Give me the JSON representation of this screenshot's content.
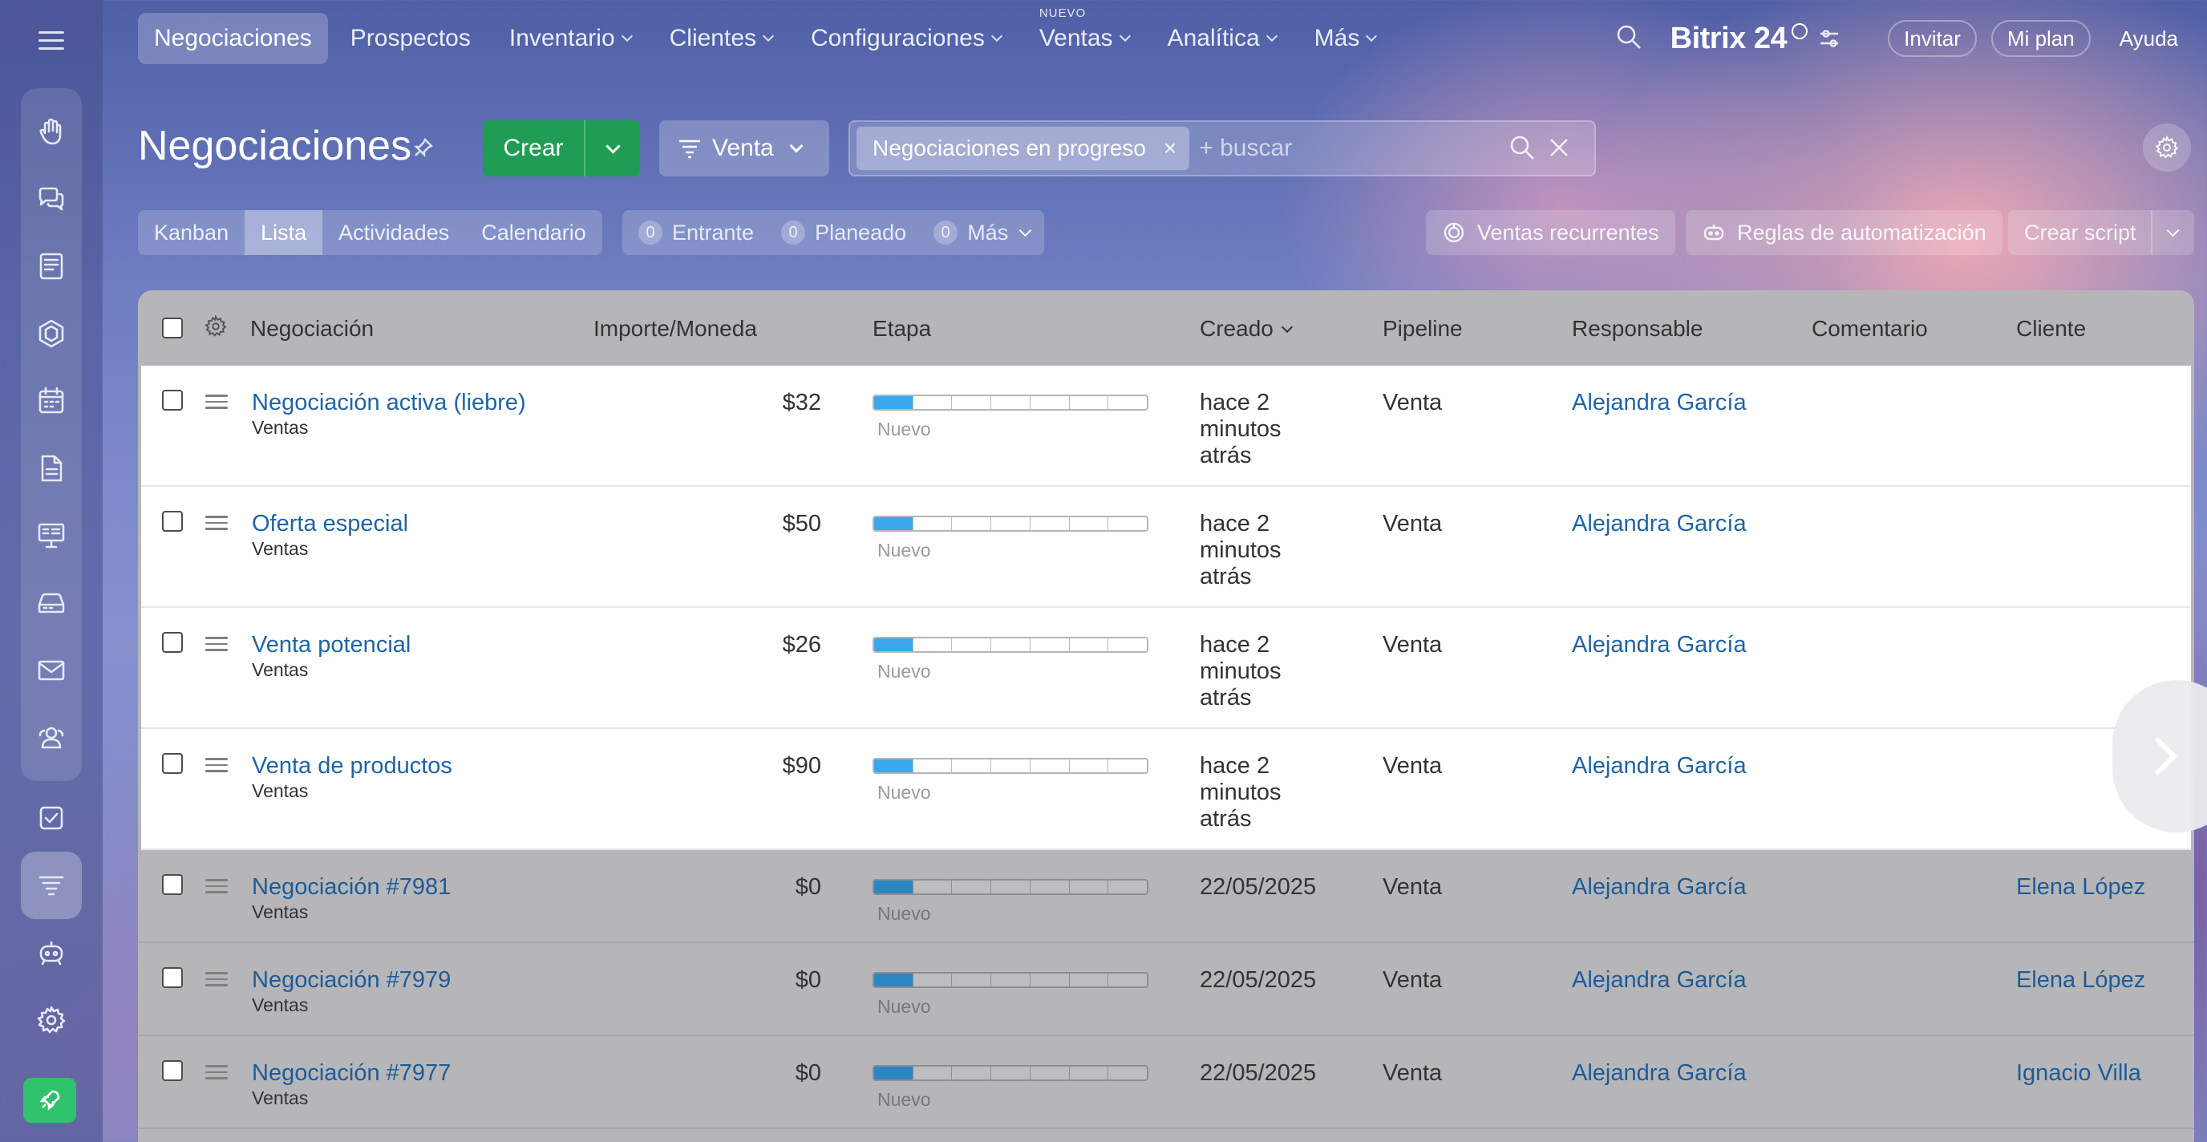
{
  "topnav": {
    "items": [
      {
        "label": "Negociaciones",
        "chevron": false,
        "active": true
      },
      {
        "label": "Prospectos",
        "chevron": false
      },
      {
        "label": "Inventario",
        "chevron": true
      },
      {
        "label": "Clientes",
        "chevron": true
      },
      {
        "label": "Configuraciones",
        "chevron": true
      },
      {
        "label": "Ventas",
        "chevron": true,
        "badge": "NUEVO"
      },
      {
        "label": "Analítica",
        "chevron": true
      },
      {
        "label": "Más",
        "chevron": true
      }
    ],
    "brand": "Bitrix 24",
    "invite": "Invitar",
    "my_plan": "Mi plan",
    "help": "Ayuda"
  },
  "page": {
    "title": "Negociaciones",
    "create_label": "Crear",
    "pipeline_label": "Venta",
    "filter_chip": "Negociaciones en progreso",
    "filter_chip_close": "×",
    "search_placeholder": "+ buscar"
  },
  "views": [
    {
      "label": "Kanban"
    },
    {
      "label": "Lista",
      "active": true
    },
    {
      "label": "Actividades"
    },
    {
      "label": "Calendario"
    }
  ],
  "counters": [
    {
      "count": "0",
      "label": "Entrante"
    },
    {
      "count": "0",
      "label": "Planeado"
    },
    {
      "count": "0",
      "label": "Más"
    }
  ],
  "tools": {
    "recurring": "Ventas recurrentes",
    "automation": "Reglas de automatización",
    "script": "Crear script"
  },
  "grid": {
    "columns": [
      "Negociación",
      "Importe/Moneda",
      "Etapa",
      "Creado",
      "Pipeline",
      "Responsable",
      "Comentario",
      "Cliente"
    ],
    "stage_segments": 7,
    "rows": [
      {
        "name": "Negociación activa (liebre)",
        "sub": "Ventas",
        "amount": "$32",
        "stage": "Nuevo",
        "stage_progress": 1,
        "created": "hace 2 minutos atrás",
        "pipeline": "Venta",
        "responsible": "Alejandra García",
        "client": "",
        "highlight": true
      },
      {
        "name": "Oferta especial",
        "sub": "Ventas",
        "amount": "$50",
        "stage": "Nuevo",
        "stage_progress": 1,
        "created": "hace 2 minutos atrás",
        "pipeline": "Venta",
        "responsible": "Alejandra García",
        "client": "",
        "highlight": true
      },
      {
        "name": "Venta potencial",
        "sub": "Ventas",
        "amount": "$26",
        "stage": "Nuevo",
        "stage_progress": 1,
        "created": "hace 2 minutos atrás",
        "pipeline": "Venta",
        "responsible": "Alejandra García",
        "client": "",
        "highlight": true
      },
      {
        "name": "Venta de productos",
        "sub": "Ventas",
        "amount": "$90",
        "stage": "Nuevo",
        "stage_progress": 1,
        "created": "hace 2 minutos atrás",
        "pipeline": "Venta",
        "responsible": "Alejandra García",
        "client": "",
        "highlight": true
      },
      {
        "name": "Negociación #7981",
        "sub": "Ventas",
        "amount": "$0",
        "stage": "Nuevo",
        "stage_progress": 1,
        "created": "22/05/2025",
        "pipeline": "Venta",
        "responsible": "Alejandra García",
        "client": "Elena López",
        "highlight": false
      },
      {
        "name": "Negociación #7979",
        "sub": "Ventas",
        "amount": "$0",
        "stage": "Nuevo",
        "stage_progress": 1,
        "created": "22/05/2025",
        "pipeline": "Venta",
        "responsible": "Alejandra García",
        "client": "Elena López",
        "highlight": false
      },
      {
        "name": "Negociación #7977",
        "sub": "Ventas",
        "amount": "$0",
        "stage": "Nuevo",
        "stage_progress": 1,
        "created": "22/05/2025",
        "pipeline": "Venta",
        "responsible": "Alejandra García",
        "client": "Ignacio Villa",
        "highlight": false
      }
    ]
  },
  "colors": {
    "create_button": "#1f9d55",
    "link": "#1f64a5",
    "stage_fill": "#3aa8ea",
    "rocket_button": "#2fc26b"
  },
  "rail_icons": [
    "menu-icon",
    "hand-icon",
    "chat-icon",
    "feed-icon",
    "hexagon-icon",
    "calendar-icon",
    "document-icon",
    "board-icon",
    "storage-icon",
    "mail-icon",
    "contacts-icon",
    "tasks-icon",
    "crm-funnel-icon",
    "robot-icon",
    "settings-icon",
    "rocket-icon"
  ]
}
